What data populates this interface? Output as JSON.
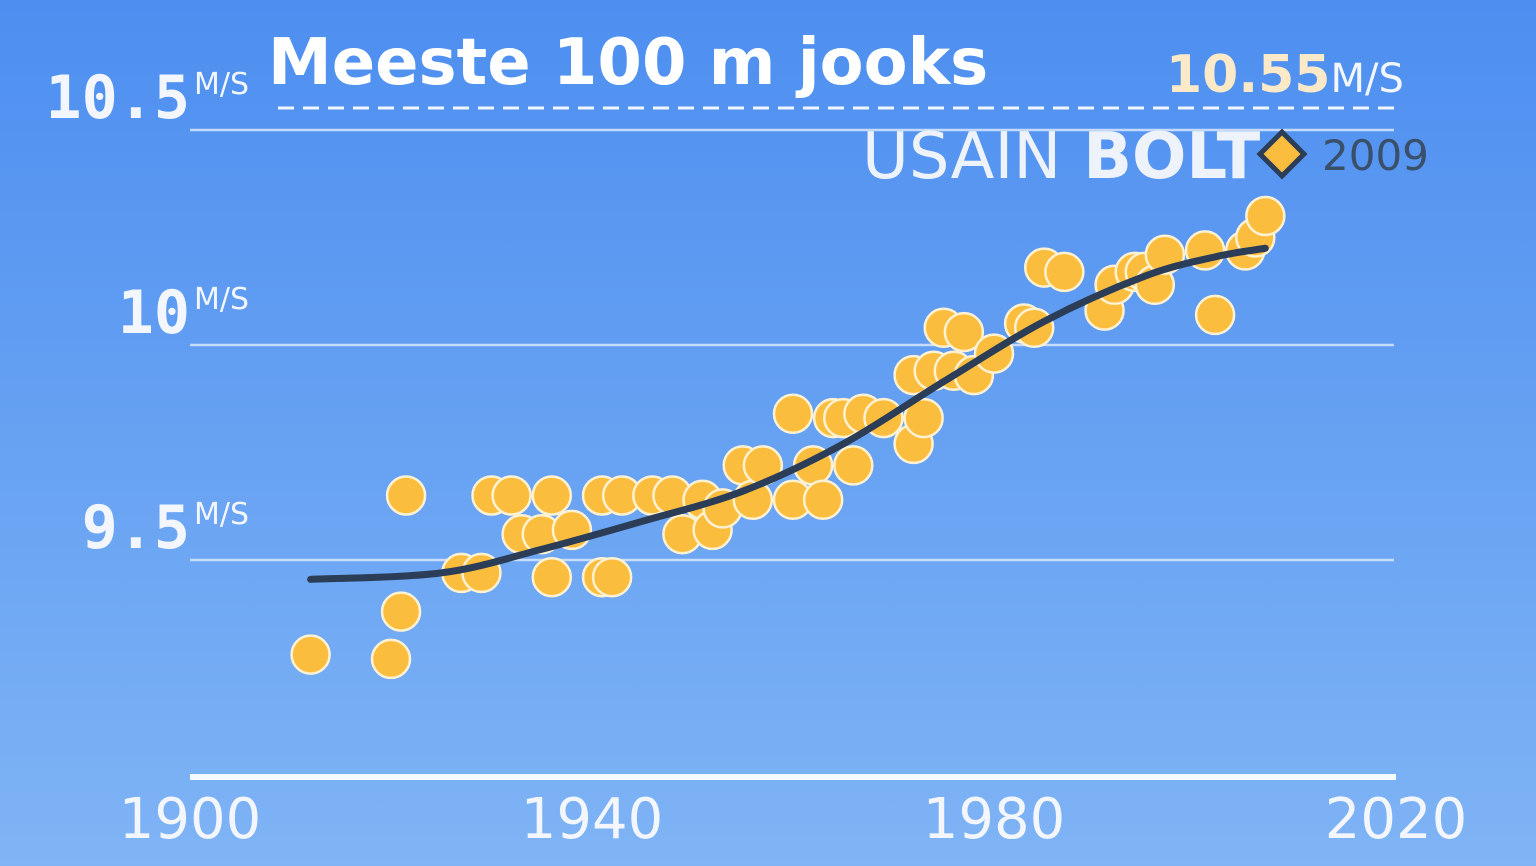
{
  "title": "Meeste 100 m jooks",
  "chart_data": {
    "type": "scatter",
    "title": "Meeste 100 m jooks",
    "xlabel": "",
    "ylabel": "",
    "x_ticks": [
      "1900",
      "1940",
      "1980",
      "2020"
    ],
    "y_ticks": [
      {
        "value": 9.5,
        "label": "9.5",
        "unit": "M/S"
      },
      {
        "value": 10,
        "label": "10",
        "unit": "M/S"
      },
      {
        "value": 10.5,
        "label": "10.5",
        "unit": "M/S"
      }
    ],
    "xlim": [
      1900,
      2020
    ],
    "ylim": [
      9.0,
      10.55
    ],
    "grid": true,
    "record": {
      "value_label": "10.55",
      "unit": "M/S",
      "value": 10.55,
      "name_first": "USAIN",
      "name_last": "BOLT",
      "year": "2009",
      "year_value": 2009
    },
    "points": [
      [
        1912,
        9.28
      ],
      [
        1920,
        9.27
      ],
      [
        1921,
        9.38
      ],
      [
        1921.5,
        9.65
      ],
      [
        1927,
        9.47
      ],
      [
        1929,
        9.47
      ],
      [
        1930,
        9.65
      ],
      [
        1932,
        9.65
      ],
      [
        1933,
        9.56
      ],
      [
        1935,
        9.56
      ],
      [
        1936,
        9.46
      ],
      [
        1936,
        9.65
      ],
      [
        1938,
        9.57
      ],
      [
        1941,
        9.46
      ],
      [
        1941,
        9.65
      ],
      [
        1942,
        9.46
      ],
      [
        1943,
        9.65
      ],
      [
        1946,
        9.65
      ],
      [
        1948,
        9.65
      ],
      [
        1949,
        9.56
      ],
      [
        1951,
        9.64
      ],
      [
        1952,
        9.57
      ],
      [
        1953,
        9.62
      ],
      [
        1955,
        9.72
      ],
      [
        1956,
        9.64
      ],
      [
        1957,
        9.72
      ],
      [
        1960,
        9.64
      ],
      [
        1960,
        9.84
      ],
      [
        1962,
        9.72
      ],
      [
        1963,
        9.64
      ],
      [
        1964,
        9.83
      ],
      [
        1965,
        9.83
      ],
      [
        1966,
        9.72
      ],
      [
        1967,
        9.84
      ],
      [
        1969,
        9.83
      ],
      [
        1972,
        9.77
      ],
      [
        1972,
        9.93
      ],
      [
        1973,
        9.83
      ],
      [
        1974,
        9.94
      ],
      [
        1975,
        10.04
      ],
      [
        1976,
        9.94
      ],
      [
        1977,
        10.03
      ],
      [
        1978,
        9.93
      ],
      [
        1980,
        9.98
      ],
      [
        1983,
        10.05
      ],
      [
        1984,
        10.04
      ],
      [
        1985,
        10.18
      ],
      [
        1987,
        10.17
      ],
      [
        1991,
        10.08
      ],
      [
        1992,
        10.14
      ],
      [
        1994,
        10.17
      ],
      [
        1995,
        10.17
      ],
      [
        1996,
        10.14
      ],
      [
        1997,
        10.21
      ],
      [
        2001,
        10.22
      ],
      [
        2002,
        10.07
      ],
      [
        2005,
        10.22
      ],
      [
        2006,
        10.25
      ],
      [
        2007,
        10.3
      ]
    ],
    "trend": {
      "name": "",
      "x": [
        1912,
        1925,
        1935,
        1945,
        1955,
        1965,
        1975,
        1985,
        1995,
        2002,
        2007
      ],
      "y": [
        9.455,
        9.47,
        9.525,
        9.59,
        9.66,
        9.77,
        9.915,
        10.055,
        10.16,
        10.205,
        10.225
      ]
    }
  },
  "colors": {
    "bg_top": "#4d8ef0",
    "bg_bottom": "#7fb4f5",
    "dot_fill": "#fbbd3e",
    "dot_stroke": "#fff2d2",
    "trend": "#2b3d57",
    "grid": "#d8e6fb"
  }
}
